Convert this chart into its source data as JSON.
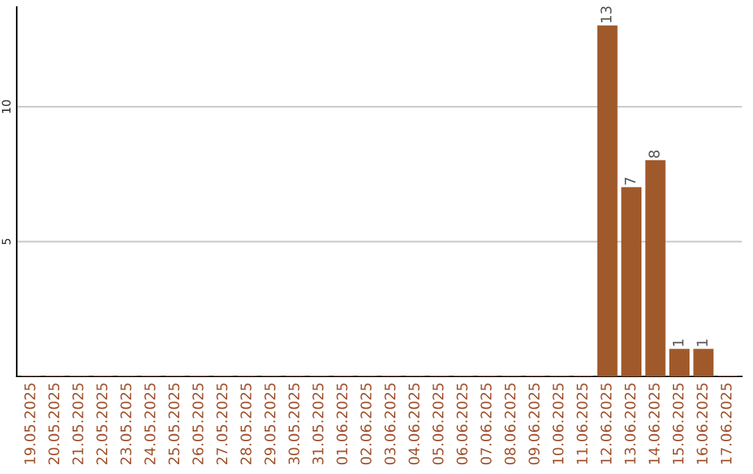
{
  "chart_data": {
    "type": "bar",
    "categories": [
      "19.05.2025",
      "20.05.2025",
      "21.05.2025",
      "22.05.2025",
      "23.05.2025",
      "24.05.2025",
      "25.05.2025",
      "26.05.2025",
      "27.05.2025",
      "28.05.2025",
      "29.05.2025",
      "30.05.2025",
      "31.05.2025",
      "01.06.2025",
      "02.06.2025",
      "03.06.2025",
      "04.06.2025",
      "05.06.2025",
      "06.06.2025",
      "07.06.2025",
      "08.06.2025",
      "09.06.2025",
      "10.06.2025",
      "11.06.2025",
      "12.06.2025",
      "13.06.2025",
      "14.06.2025",
      "15.06.2025",
      "16.06.2025",
      "17.06.2025"
    ],
    "values": [
      0,
      0,
      0,
      0,
      0,
      0,
      0,
      0,
      0,
      0,
      0,
      0,
      0,
      0,
      0,
      0,
      0,
      0,
      0,
      0,
      0,
      0,
      0,
      0,
      13,
      7,
      8,
      1,
      1,
      0
    ],
    "value_labels": [
      null,
      null,
      null,
      null,
      null,
      null,
      null,
      null,
      null,
      null,
      null,
      null,
      null,
      null,
      null,
      null,
      null,
      null,
      null,
      null,
      null,
      null,
      null,
      null,
      "13",
      "7",
      "8",
      "1",
      "1",
      null
    ],
    "color": "#a0592a",
    "ylim": [
      0,
      13.7
    ],
    "yticks": [
      5,
      10
    ],
    "grid": "y",
    "legend": false
  }
}
